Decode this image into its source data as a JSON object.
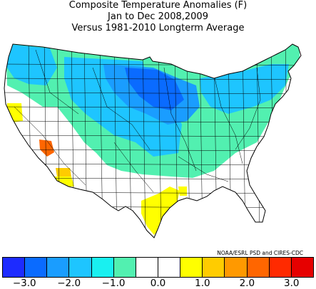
{
  "title": {
    "line1": "Composite Temperature Anomalies (F)",
    "line2": "Jan to Dec  2008,2009",
    "line3": "Versus 1981-2010 Longterm Average"
  },
  "credit": "NOAA/ESRL PSD and CIRES-CDC",
  "colorbar": {
    "colors": [
      "#1d2bff",
      "#0a6bff",
      "#1a9dff",
      "#1ec5ff",
      "#19f0f0",
      "#52f0b0",
      "#ffffff",
      "#ffffff",
      "#ffff00",
      "#ffcc00",
      "#ff9900",
      "#ff6600",
      "#ff2a00",
      "#e60000"
    ],
    "labels": [
      {
        "text": "−3.0",
        "value": -3.0
      },
      {
        "text": "−2.0",
        "value": -2.0
      },
      {
        "text": "−1.0",
        "value": -1.0
      },
      {
        "text": "0.0",
        "value": 0.0
      },
      {
        "text": "1.0",
        "value": 1.0
      },
      {
        "text": "2.0",
        "value": 2.0
      },
      {
        "text": "3.0",
        "value": 3.0
      }
    ],
    "range": [
      -3.5,
      3.5
    ]
  },
  "map_colors": {
    "strong_cold": "#0a6bff",
    "cold": "#1a9dff",
    "cool": "#1ec5ff",
    "slight_cool": "#52f0b0",
    "neutral": "#ffffff",
    "warm": "#ffff00",
    "warmer": "#ffcc00",
    "hot": "#ff6600",
    "outline": "#000000"
  }
}
